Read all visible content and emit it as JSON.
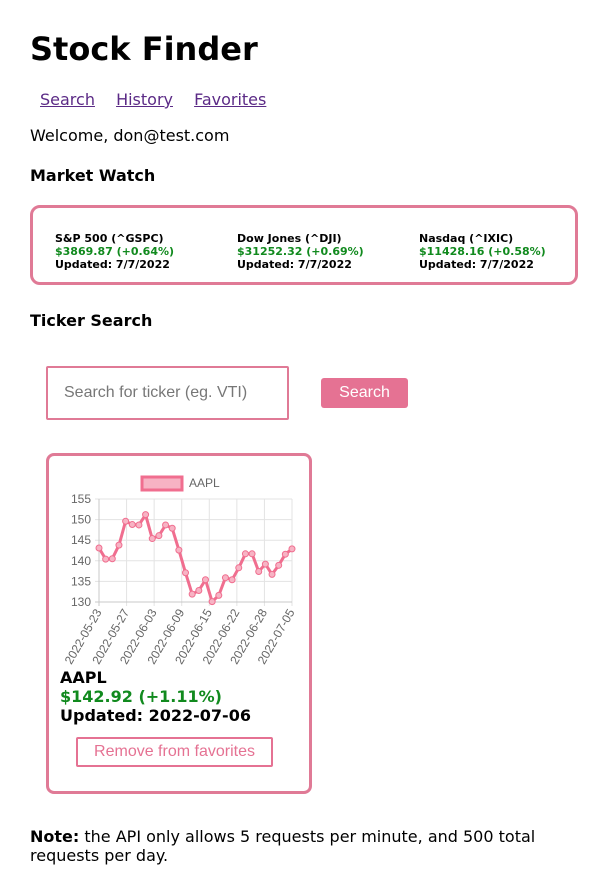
{
  "app": {
    "title": "Stock Finder"
  },
  "nav": {
    "items": [
      "Search",
      "History",
      "Favorites"
    ]
  },
  "welcome": "Welcome, don@test.com",
  "market": {
    "heading": "Market Watch",
    "indices": [
      {
        "name": "S&P 500 (^GSPC)",
        "price": "$3869.87 (+0.64%)",
        "updated": "Updated: 7/7/2022"
      },
      {
        "name": "Dow Jones (^DJI)",
        "price": "$31252.32 (+0.69%)",
        "updated": "Updated: 7/7/2022"
      },
      {
        "name": "Nasdaq (^IXIC)",
        "price": "$11428.16 (+0.58%)",
        "updated": "Updated: 7/7/2022"
      }
    ]
  },
  "search": {
    "heading": "Ticker Search",
    "placeholder": "Search for ticker (eg. VTI)",
    "button_label": "Search"
  },
  "favorite": {
    "ticker": "AAPL",
    "price": "$142.92 (+1.11%)",
    "updated": "Updated: 2022-07-06",
    "remove_label": "Remove from favorites"
  },
  "colors": {
    "accent": "#e57293",
    "positive": "#118a1e",
    "link": "#5b2a86"
  },
  "chart_data": {
    "type": "line",
    "series": [
      {
        "name": "AAPL",
        "color": "#f06e8f"
      }
    ],
    "ylim": [
      130,
      155
    ],
    "yticks": [
      130,
      135,
      140,
      145,
      150,
      155
    ],
    "x_tick_labels": [
      "2022-05-23",
      "2022-05-27",
      "2022-06-03",
      "2022-06-09",
      "2022-06-15",
      "2022-06-22",
      "2022-06-28",
      "2022-07-05"
    ],
    "x": [
      "2022-05-23",
      "2022-05-24",
      "2022-05-25",
      "2022-05-26",
      "2022-05-27",
      "2022-05-31",
      "2022-06-01",
      "2022-06-02",
      "2022-06-03",
      "2022-06-06",
      "2022-06-07",
      "2022-06-08",
      "2022-06-09",
      "2022-06-10",
      "2022-06-13",
      "2022-06-14",
      "2022-06-15",
      "2022-06-16",
      "2022-06-17",
      "2022-06-21",
      "2022-06-22",
      "2022-06-23",
      "2022-06-24",
      "2022-06-27",
      "2022-06-28",
      "2022-06-29",
      "2022-06-30",
      "2022-07-01",
      "2022-07-05",
      "2022-07-06"
    ],
    "values": [
      143.1,
      140.4,
      140.5,
      143.8,
      149.6,
      148.8,
      148.7,
      151.2,
      145.4,
      146.1,
      148.7,
      147.9,
      142.6,
      137.1,
      131.9,
      132.8,
      135.4,
      130.1,
      131.6,
      135.9,
      135.4,
      138.3,
      141.7,
      141.7,
      137.4,
      139.2,
      136.7,
      138.9,
      141.6,
      142.9
    ],
    "legend": "top",
    "grid": true
  }
}
